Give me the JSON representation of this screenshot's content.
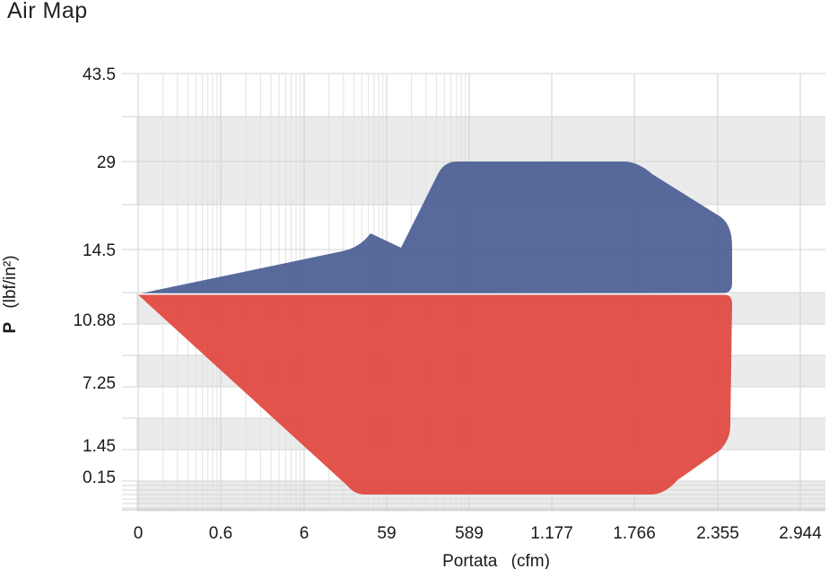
{
  "chart_data": {
    "type": "area",
    "title": "Air Map",
    "xlabel_bold": "Portata",
    "xlabel_unit": "(cfm)",
    "ylabel_bold": "P",
    "ylabel_unit": "(lbf/in²)",
    "x_ticks": [
      "0",
      "0.6",
      "6",
      "59",
      "589",
      "1.177",
      "1.766",
      "2.355",
      "2.944"
    ],
    "y_ticks": [
      "43.5",
      "29",
      "14.5",
      "10.88",
      "7.25",
      "1.45",
      "0.15"
    ],
    "grid": true,
    "series": [
      {
        "color": "#4a5d92",
        "x": [
          "0",
          "59",
          "589",
          "1.766",
          "2.355",
          "2.355"
        ],
        "y": [
          "12.2",
          "14.5",
          "29",
          "29",
          "21",
          "12.2"
        ]
      },
      {
        "color": "#e0453d",
        "x": [
          "0",
          "59",
          "1.766",
          "2.355",
          "2.355"
        ],
        "y": [
          "12.2",
          "0.15",
          "0.15",
          "1.45",
          "12.2"
        ]
      }
    ]
  }
}
